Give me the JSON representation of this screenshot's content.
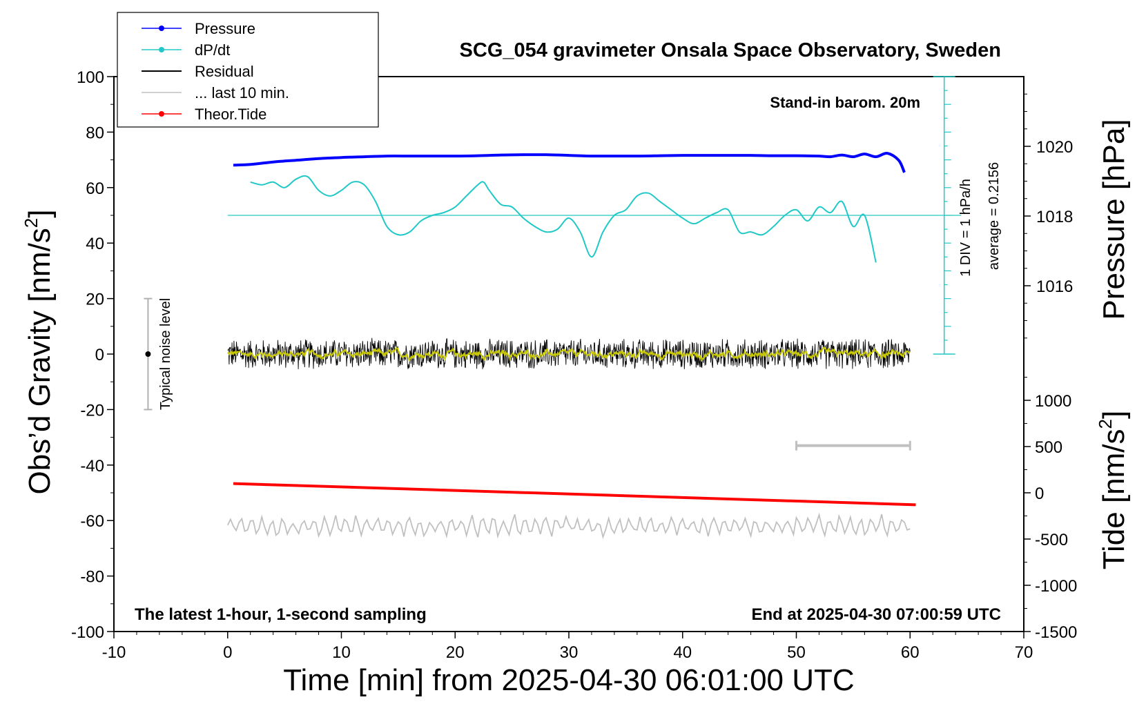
{
  "chart_data": {
    "type": "line",
    "title": "SCG_054 gravimeter Onsala Space Observatory, Sweden",
    "xlabel": "Time [min] from 2025-04-30 06:01:00 UTC",
    "ylabel_left_main": "Obs’d Gravity [nm/s",
    "ylabel_left_sup": "2",
    "ylabel_left_end": "]",
    "ylabel_right_top": "Pressure [hPa]",
    "ylabel_right_bottom_main": "Tide [nm/s",
    "ylabel_right_bottom_sup": "2",
    "ylabel_right_bottom_end": "]",
    "xlim": [
      -10,
      70
    ],
    "ylim": [
      -100,
      100
    ],
    "pressure_ylim": [
      1014,
      1022
    ],
    "tide_ylim": [
      -1500,
      1500
    ],
    "x_ticks": [
      -10,
      0,
      10,
      20,
      30,
      40,
      50,
      60,
      70
    ],
    "y_ticks": [
      100,
      80,
      60,
      40,
      20,
      0,
      -20,
      -40,
      -60,
      -80,
      -100
    ],
    "pressure_ticks": [
      1020,
      1018,
      1016
    ],
    "tide_ticks": [
      1000,
      500,
      0,
      -500,
      -1000,
      -1500
    ],
    "annotations": {
      "barometer": "Stand-in barom. 20m",
      "div_label": "1 DIV = 1 hPa/h",
      "average_label": "average = 0.2156",
      "noise_label": "Typical noise level",
      "bottom_left": "The latest 1-hour, 1-second sampling",
      "bottom_right": "End at 2025-04-30 07:00:59 UTC"
    },
    "legend": {
      "placement": "top-left",
      "entries": [
        {
          "name": "Pressure",
          "color": "#0000ff",
          "marker": true
        },
        {
          "name": "dP/dt",
          "color": "#20c8c8",
          "marker": true
        },
        {
          "name": "Residual",
          "color": "#000000",
          "marker": false
        },
        {
          "name": "... last 10 min.",
          "color": "#c0c0c0",
          "marker": false
        },
        {
          "name": "Theor.Tide",
          "color": "#ff0000",
          "marker": true
        }
      ]
    },
    "colors": {
      "pressure": "#0000ff",
      "dpdt": "#20c8c8",
      "residual": "#000000",
      "residual_smooth": "#c8c800",
      "last10": "#c0c0c0",
      "tide": "#ff0000",
      "noise_bar": "#b0b0b0"
    },
    "series": [
      {
        "name": "Pressure",
        "axis": "pressure",
        "x": [
          0.5,
          2,
          4,
          6,
          8,
          10,
          12,
          14,
          16,
          18,
          20,
          22,
          24,
          26,
          28,
          30,
          32,
          34,
          36,
          38,
          40,
          42,
          44,
          46,
          48,
          50,
          52,
          53,
          54,
          55,
          56,
          57,
          58,
          59,
          59.5
        ],
        "y": [
          1019.46,
          1019.48,
          1019.55,
          1019.6,
          1019.65,
          1019.68,
          1019.7,
          1019.72,
          1019.72,
          1019.72,
          1019.72,
          1019.73,
          1019.75,
          1019.76,
          1019.76,
          1019.74,
          1019.72,
          1019.72,
          1019.72,
          1019.73,
          1019.74,
          1019.74,
          1019.74,
          1019.74,
          1019.73,
          1019.73,
          1019.72,
          1019.7,
          1019.75,
          1019.7,
          1019.78,
          1019.7,
          1019.8,
          1019.6,
          1019.25
        ]
      },
      {
        "name": "dP/dt",
        "axis": "gravity",
        "x": [
          2,
          3,
          4,
          5,
          6,
          7,
          8,
          9,
          10,
          11,
          12,
          13,
          14,
          15,
          16,
          17,
          18,
          19,
          20,
          21,
          22,
          22.5,
          23,
          24,
          25,
          26,
          27,
          28,
          29,
          30,
          31,
          32,
          33,
          34,
          35,
          36,
          37,
          38,
          39,
          40,
          41,
          42,
          43,
          44,
          45,
          46,
          47,
          48,
          49,
          50,
          51,
          52,
          53,
          54,
          55,
          56,
          57
        ],
        "y": [
          62,
          61,
          62,
          60,
          63,
          64,
          59,
          57,
          59,
          62,
          61,
          55,
          46,
          43,
          44,
          48,
          50,
          51,
          53,
          57,
          61,
          62,
          59,
          54,
          53,
          49,
          46,
          44,
          45,
          49,
          44,
          35,
          44,
          50,
          52,
          57,
          58,
          55,
          52,
          49,
          47,
          49,
          51,
          52,
          44,
          44,
          43,
          46,
          50,
          52,
          48,
          53,
          51,
          55,
          46,
          50,
          33
        ]
      },
      {
        "name": "Theor.Tide",
        "axis": "tide",
        "x": [
          0.5,
          60.5
        ],
        "y": [
          100,
          -130
        ]
      }
    ],
    "residual": {
      "x_range": [
        0,
        60
      ],
      "center": 0,
      "amplitude": 6
    },
    "last10": {
      "x_range": [
        0,
        60
      ],
      "center": -62,
      "amplitude": 4
    },
    "dpdt_average_line": 50,
    "noise_bar": {
      "x": -7,
      "y_range": [
        -20,
        20
      ],
      "center": 0
    },
    "gray_bar": {
      "x_range": [
        50,
        60
      ],
      "y": -33
    },
    "dpdt_axis": {
      "x": 63,
      "y_range": [
        0,
        100
      ],
      "div_step": 5
    }
  }
}
